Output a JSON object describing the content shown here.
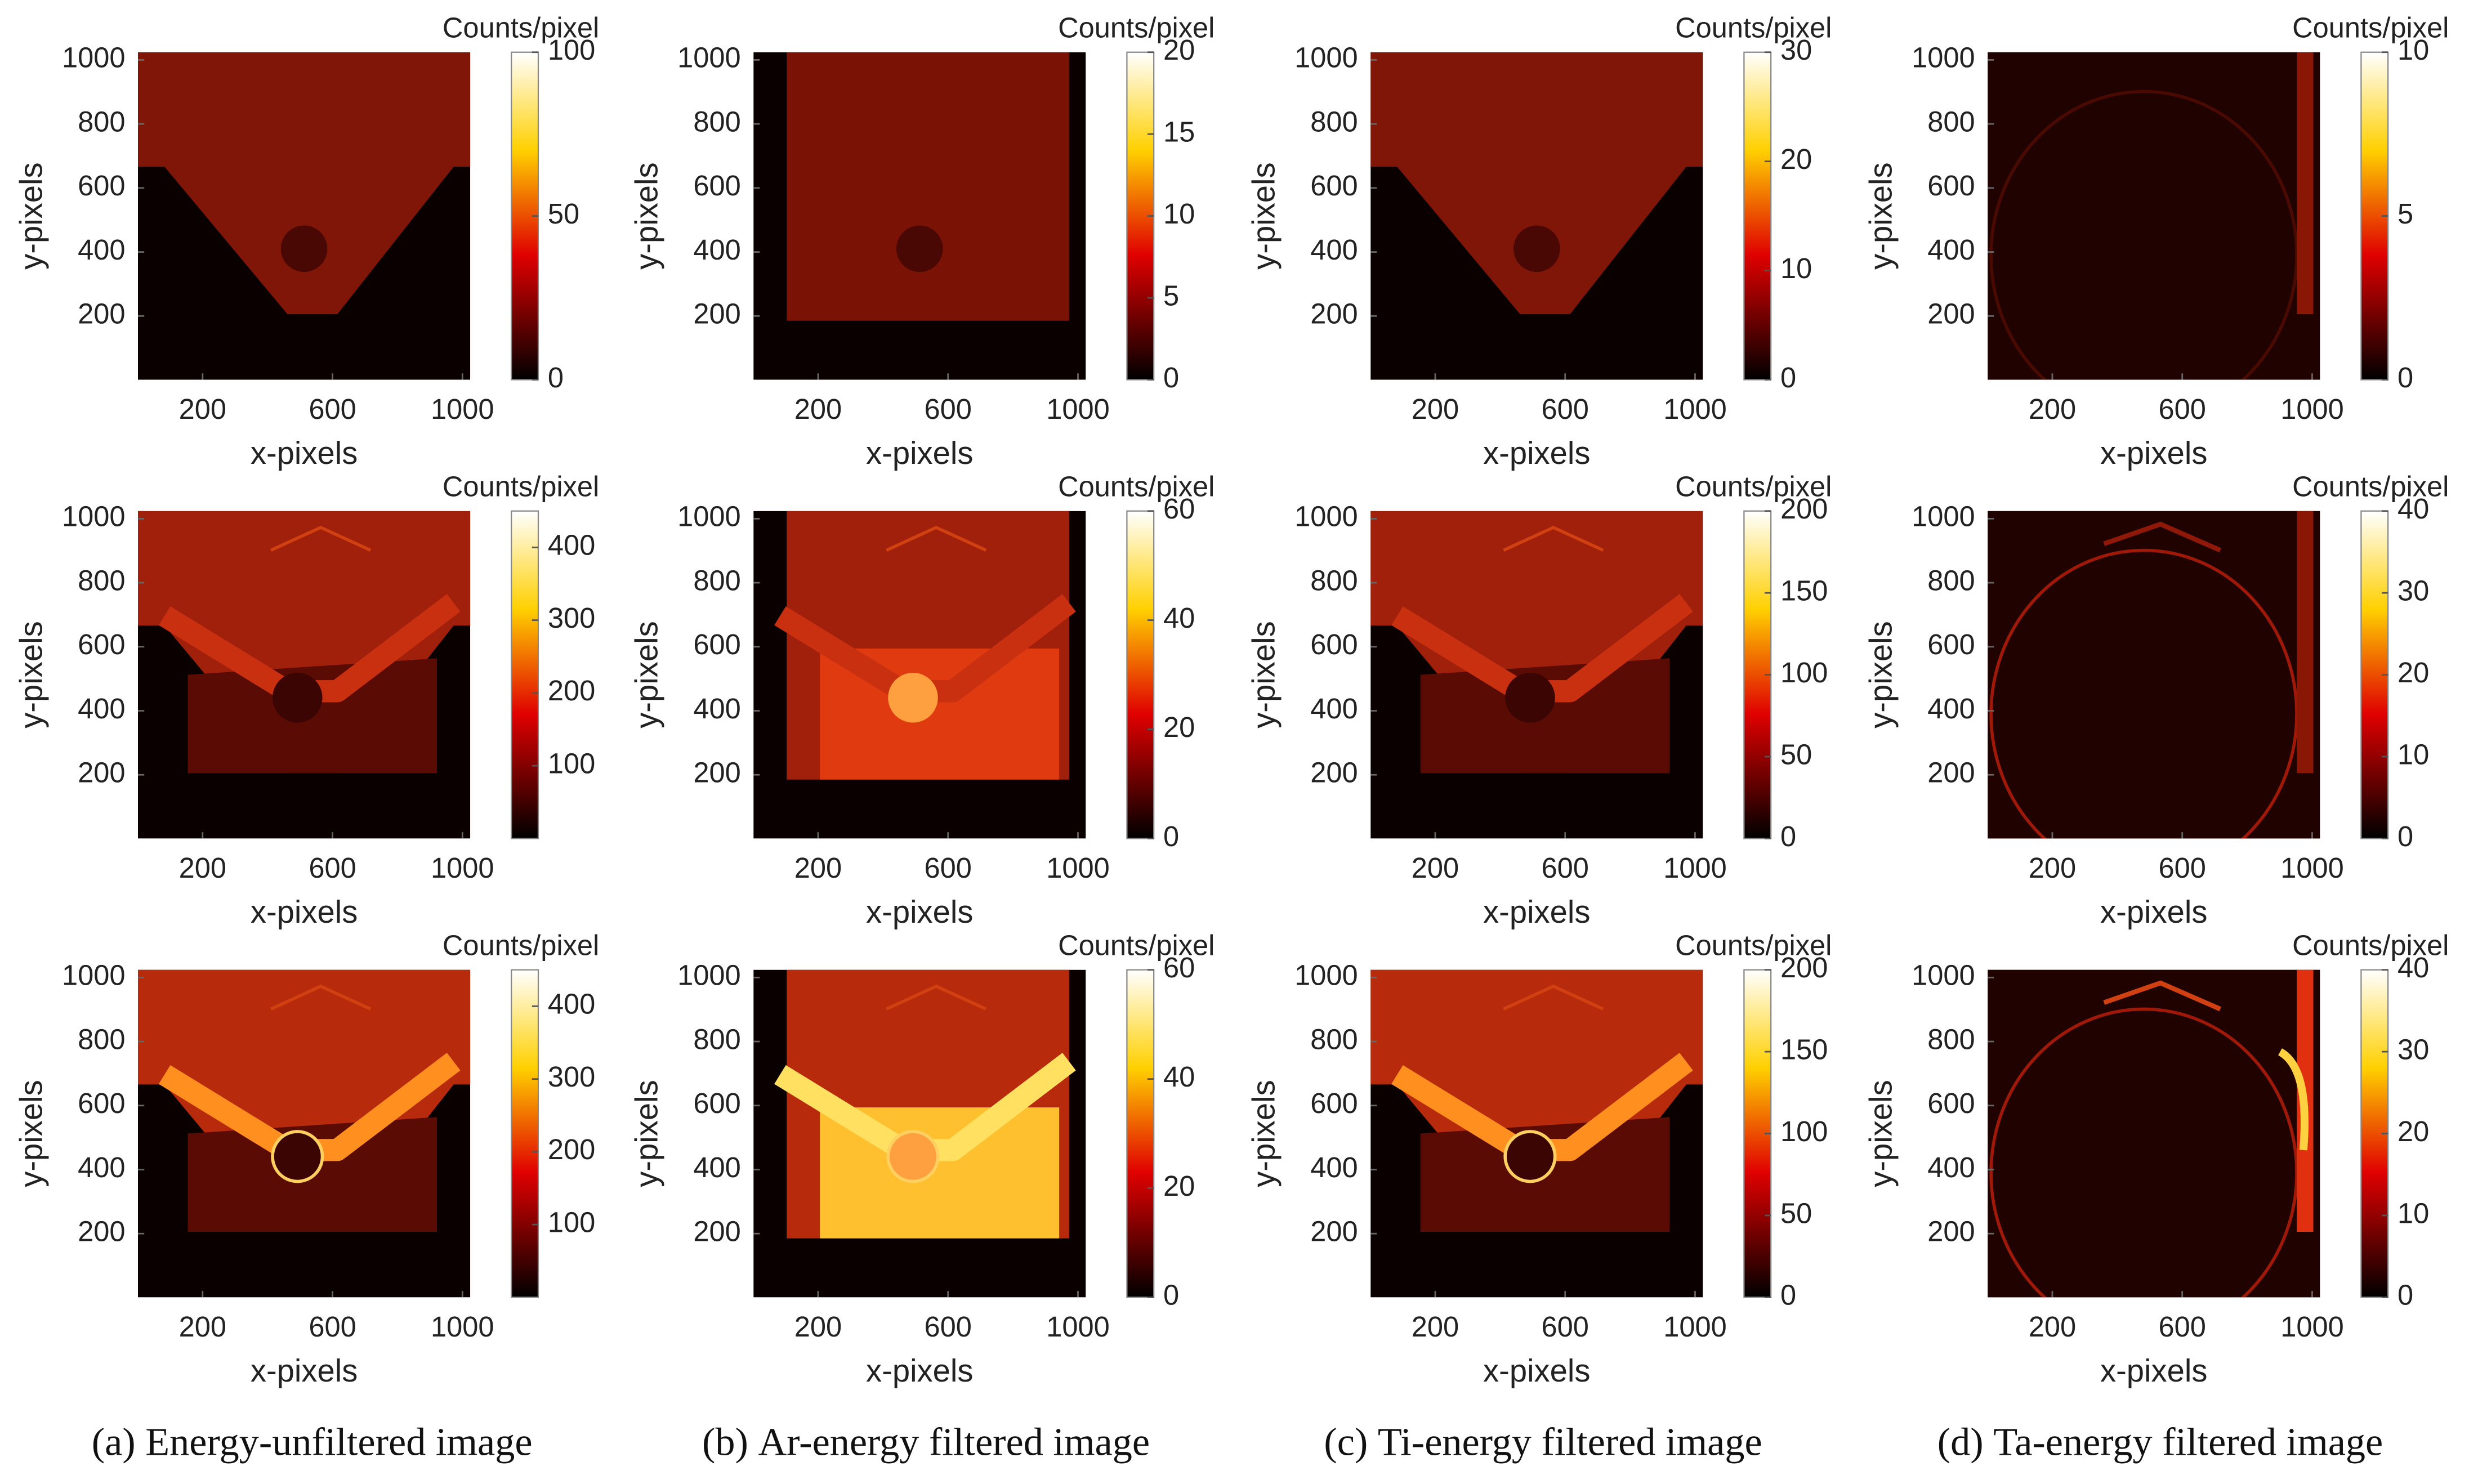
{
  "chart_data": [
    {
      "type": "heatmap",
      "colormap": "hot",
      "xlabel": "x-pixels",
      "ylabel": "y-pixels",
      "colorbar_label": "Counts/pixel",
      "xlim": [
        1,
        1024
      ],
      "ylim": [
        1,
        1024
      ],
      "xticks": [
        200,
        600,
        1000
      ],
      "yticks": [
        200,
        400,
        600,
        800,
        1000
      ],
      "clim": [
        0,
        100
      ],
      "cticks": [
        0,
        50,
        100
      ]
    },
    {
      "type": "heatmap",
      "colormap": "hot",
      "xlabel": "x-pixels",
      "ylabel": "y-pixels",
      "colorbar_label": "Counts/pixel",
      "xlim": [
        1,
        1024
      ],
      "ylim": [
        1,
        1024
      ],
      "xticks": [
        200,
        600,
        1000
      ],
      "yticks": [
        200,
        400,
        600,
        800,
        1000
      ],
      "clim": [
        0,
        20
      ],
      "cticks": [
        0,
        5,
        10,
        15,
        20
      ]
    },
    {
      "type": "heatmap",
      "colormap": "hot",
      "xlabel": "x-pixels",
      "ylabel": "y-pixels",
      "colorbar_label": "Counts/pixel",
      "xlim": [
        1,
        1024
      ],
      "ylim": [
        1,
        1024
      ],
      "xticks": [
        200,
        600,
        1000
      ],
      "yticks": [
        200,
        400,
        600,
        800,
        1000
      ],
      "clim": [
        0,
        30
      ],
      "cticks": [
        0,
        10,
        20,
        30
      ]
    },
    {
      "type": "heatmap",
      "colormap": "hot",
      "xlabel": "x-pixels",
      "ylabel": "y-pixels",
      "colorbar_label": "Counts/pixel",
      "xlim": [
        1,
        1024
      ],
      "ylim": [
        1,
        1024
      ],
      "xticks": [
        200,
        600,
        1000
      ],
      "yticks": [
        200,
        400,
        600,
        800,
        1000
      ],
      "clim": [
        0,
        10
      ],
      "cticks": [
        0,
        5,
        10
      ]
    },
    {
      "type": "heatmap",
      "colormap": "hot",
      "xlabel": "x-pixels",
      "ylabel": "y-pixels",
      "colorbar_label": "Counts/pixel",
      "xlim": [
        1,
        1024
      ],
      "ylim": [
        1,
        1024
      ],
      "xticks": [
        200,
        600,
        1000
      ],
      "yticks": [
        200,
        400,
        600,
        800,
        1000
      ],
      "clim": [
        0,
        450
      ],
      "cticks": [
        100,
        200,
        300,
        400
      ]
    },
    {
      "type": "heatmap",
      "colormap": "hot",
      "xlabel": "x-pixels",
      "ylabel": "y-pixels",
      "colorbar_label": "Counts/pixel",
      "xlim": [
        1,
        1024
      ],
      "ylim": [
        1,
        1024
      ],
      "xticks": [
        200,
        600,
        1000
      ],
      "yticks": [
        200,
        400,
        600,
        800,
        1000
      ],
      "clim": [
        0,
        60
      ],
      "cticks": [
        0,
        20,
        40,
        60
      ]
    },
    {
      "type": "heatmap",
      "colormap": "hot",
      "xlabel": "x-pixels",
      "ylabel": "y-pixels",
      "colorbar_label": "Counts/pixel",
      "xlim": [
        1,
        1024
      ],
      "ylim": [
        1,
        1024
      ],
      "xticks": [
        200,
        600,
        1000
      ],
      "yticks": [
        200,
        400,
        600,
        800,
        1000
      ],
      "clim": [
        0,
        200
      ],
      "cticks": [
        0,
        50,
        100,
        150,
        200
      ]
    },
    {
      "type": "heatmap",
      "colormap": "hot",
      "xlabel": "x-pixels",
      "ylabel": "y-pixels",
      "colorbar_label": "Counts/pixel",
      "xlim": [
        1,
        1024
      ],
      "ylim": [
        1,
        1024
      ],
      "xticks": [
        200,
        600,
        1000
      ],
      "yticks": [
        200,
        400,
        600,
        800,
        1000
      ],
      "clim": [
        0,
        40
      ],
      "cticks": [
        0,
        10,
        20,
        30,
        40
      ]
    },
    {
      "type": "heatmap",
      "colormap": "hot",
      "xlabel": "x-pixels",
      "ylabel": "y-pixels",
      "colorbar_label": "Counts/pixel",
      "xlim": [
        1,
        1024
      ],
      "ylim": [
        1,
        1024
      ],
      "xticks": [
        200,
        600,
        1000
      ],
      "yticks": [
        200,
        400,
        600,
        800,
        1000
      ],
      "clim": [
        0,
        450
      ],
      "cticks": [
        100,
        200,
        300,
        400
      ]
    },
    {
      "type": "heatmap",
      "colormap": "hot",
      "xlabel": "x-pixels",
      "ylabel": "y-pixels",
      "colorbar_label": "Counts/pixel",
      "xlim": [
        1,
        1024
      ],
      "ylim": [
        1,
        1024
      ],
      "xticks": [
        200,
        600,
        1000
      ],
      "yticks": [
        200,
        400,
        600,
        800,
        1000
      ],
      "clim": [
        0,
        60
      ],
      "cticks": [
        0,
        20,
        40,
        60
      ]
    },
    {
      "type": "heatmap",
      "colormap": "hot",
      "xlabel": "x-pixels",
      "ylabel": "y-pixels",
      "colorbar_label": "Counts/pixel",
      "xlim": [
        1,
        1024
      ],
      "ylim": [
        1,
        1024
      ],
      "xticks": [
        200,
        600,
        1000
      ],
      "yticks": [
        200,
        400,
        600,
        800,
        1000
      ],
      "clim": [
        0,
        200
      ],
      "cticks": [
        0,
        50,
        100,
        150,
        200
      ]
    },
    {
      "type": "heatmap",
      "colormap": "hot",
      "xlabel": "x-pixels",
      "ylabel": "y-pixels",
      "colorbar_label": "Counts/pixel",
      "xlim": [
        1,
        1024
      ],
      "ylim": [
        1,
        1024
      ],
      "xticks": [
        200,
        600,
        1000
      ],
      "yticks": [
        200,
        400,
        600,
        800,
        1000
      ],
      "clim": [
        0,
        40
      ],
      "cticks": [
        0,
        10,
        20,
        30,
        40
      ]
    }
  ],
  "captions": [
    {
      "label": "(a)",
      "text": "Energy-unfiltered image"
    },
    {
      "label": "(b)",
      "text": "Ar-energy filtered image"
    },
    {
      "label": "(c)",
      "text": "Ti-energy filtered image"
    },
    {
      "label": "(d)",
      "text": "Ta-energy filtered image"
    }
  ]
}
